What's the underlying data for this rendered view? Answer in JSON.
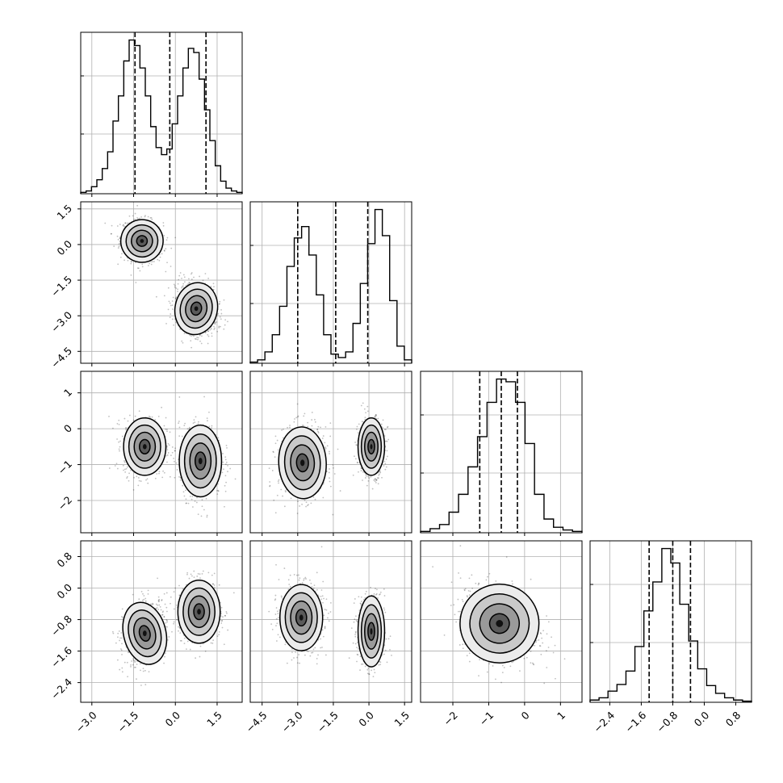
{
  "chart_data": {
    "type": "corner",
    "description_note": "",
    "n_params": 4,
    "params": [
      {
        "range": [
          -3.4,
          2.4
        ],
        "ticks": [
          -3.0,
          -1.5,
          0.0,
          1.5
        ],
        "tick_labels": [
          "−3.0",
          "−1.5",
          "0.0",
          "1.5"
        ]
      },
      {
        "range": [
          -5.0,
          1.8
        ],
        "ticks": [
          -4.5,
          -3.0,
          -1.5,
          0.0,
          1.5
        ],
        "tick_labels": [
          "−4.5",
          "−3.0",
          "−1.5",
          "0.0",
          "1.5"
        ]
      },
      {
        "range": [
          -2.9,
          1.6
        ],
        "ticks": [
          -2,
          -1,
          0,
          1
        ],
        "tick_labels": [
          "−2",
          "−1",
          "0",
          "1"
        ]
      },
      {
        "range": [
          -2.9,
          1.2
        ],
        "ticks": [
          -2.4,
          -1.6,
          -0.8,
          0.0,
          0.8
        ],
        "tick_labels": [
          "−2.4",
          "−1.6",
          "−0.8",
          "0.0",
          "0.8"
        ]
      }
    ],
    "histograms": [
      {
        "param": 0,
        "quantiles": [
          -1.45,
          -0.2,
          1.1
        ],
        "bins_edges": [
          -3.4,
          2.4
        ],
        "counts": [
          1,
          2,
          5,
          10,
          18,
          30,
          52,
          70,
          95,
          110,
          106,
          90,
          70,
          48,
          33,
          28,
          32,
          50,
          70,
          90,
          104,
          101,
          82,
          60,
          38,
          20,
          9,
          4,
          2,
          1
        ]
      },
      {
        "param": 1,
        "quantiles": [
          -3.0,
          -1.4,
          -0.05
        ],
        "bins_edges": [
          -5.0,
          1.8
        ],
        "counts": [
          1,
          3,
          10,
          25,
          50,
          85,
          110,
          120,
          95,
          60,
          25,
          8,
          5,
          10,
          35,
          70,
          105,
          135,
          112,
          55,
          15,
          3
        ]
      },
      {
        "param": 2,
        "quantiles": [
          -1.25,
          -0.65,
          -0.2
        ],
        "bins_edges": [
          -2.9,
          1.6
        ],
        "counts": [
          1,
          3,
          6,
          15,
          28,
          48,
          70,
          95,
          112,
          110,
          95,
          65,
          28,
          10,
          4,
          2,
          1
        ]
      },
      {
        "param": 3,
        "quantiles": [
          -1.4,
          -0.8,
          -0.35
        ],
        "bins_edges": [
          -2.9,
          1.2
        ],
        "counts": [
          2,
          4,
          10,
          16,
          28,
          50,
          82,
          108,
          138,
          125,
          88,
          55,
          30,
          15,
          8,
          4,
          2,
          1
        ]
      }
    ],
    "panels_2d": [
      {
        "x": 0,
        "y": 1,
        "clusters": [
          {
            "mx": -1.2,
            "my": 0.15,
            "sx": 0.38,
            "sy": 0.45,
            "rho": -0.15
          },
          {
            "mx": 0.75,
            "my": -2.7,
            "sx": 0.38,
            "sy": 0.55,
            "rho": -0.2
          }
        ]
      },
      {
        "x": 0,
        "y": 2,
        "clusters": [
          {
            "mx": -1.1,
            "my": -0.5,
            "sx": 0.38,
            "sy": 0.4,
            "rho": 0.0
          },
          {
            "mx": 0.9,
            "my": -0.9,
            "sx": 0.38,
            "sy": 0.5,
            "rho": 0.0
          }
        ]
      },
      {
        "x": 1,
        "y": 2,
        "clusters": [
          {
            "mx": -2.8,
            "my": -0.95,
            "sx": 0.5,
            "sy": 0.5,
            "rho": 0.05
          },
          {
            "mx": 0.1,
            "my": -0.5,
            "sx": 0.28,
            "sy": 0.4,
            "rho": 0.0
          }
        ]
      },
      {
        "x": 0,
        "y": 3,
        "clusters": [
          {
            "mx": -1.1,
            "my": -1.15,
            "sx": 0.38,
            "sy": 0.4,
            "rho": 0.25
          },
          {
            "mx": 0.85,
            "my": -0.6,
            "sx": 0.38,
            "sy": 0.4,
            "rho": 0.0
          }
        ]
      },
      {
        "x": 1,
        "y": 3,
        "clusters": [
          {
            "mx": -2.85,
            "my": -0.75,
            "sx": 0.45,
            "sy": 0.42,
            "rho": 0.0
          },
          {
            "mx": 0.1,
            "my": -1.1,
            "sx": 0.28,
            "sy": 0.45,
            "rho": 0.0
          }
        ]
      },
      {
        "x": 2,
        "y": 3,
        "clusters": [
          {
            "mx": -0.7,
            "my": -0.9,
            "sx": 0.55,
            "sy": 0.5,
            "rho": -0.25
          }
        ]
      }
    ],
    "contour_levels_sigma": [
      0.5,
      1.0,
      1.5,
      2.0
    ],
    "grid": true
  }
}
